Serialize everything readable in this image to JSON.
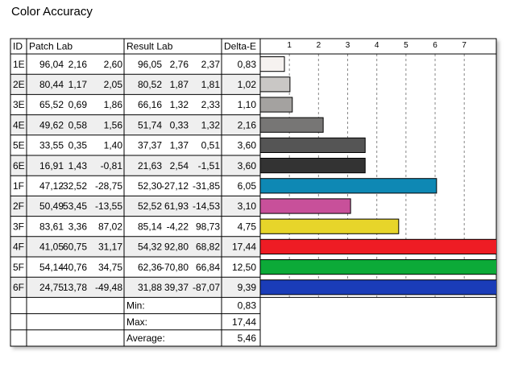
{
  "title": "Color Accuracy",
  "table": {
    "headers": [
      "ID",
      "Patch Lab",
      "Result Lab",
      "Delta-E"
    ],
    "rows": [
      {
        "id": "1E",
        "patch": [
          "96,04",
          "2,16",
          "2,60"
        ],
        "result": [
          "96,05",
          "2,76",
          "2,37"
        ]
      },
      {
        "id": "2E",
        "patch": [
          "80,44",
          "1,17",
          "2,05"
        ],
        "result": [
          "80,52",
          "1,87",
          "1,81"
        ]
      },
      {
        "id": "3E",
        "patch": [
          "65,52",
          "0,69",
          "1,86"
        ],
        "result": [
          "66,16",
          "1,32",
          "2,33"
        ]
      },
      {
        "id": "4E",
        "patch": [
          "49,62",
          "0,58",
          "1,56"
        ],
        "result": [
          "51,74",
          "0,33",
          "1,32"
        ]
      },
      {
        "id": "5E",
        "patch": [
          "33,55",
          "0,35",
          "1,40"
        ],
        "result": [
          "37,37",
          "1,37",
          "0,51"
        ]
      },
      {
        "id": "6E",
        "patch": [
          "16,91",
          "1,43",
          "-0,81"
        ],
        "result": [
          "21,63",
          "2,54",
          "-1,51"
        ]
      },
      {
        "id": "1F",
        "patch": [
          "47,12",
          "-32,52",
          "-28,75"
        ],
        "result": [
          "52,30",
          "-27,12",
          "-31,85"
        ]
      },
      {
        "id": "2F",
        "patch": [
          "50,49",
          "53,45",
          "-13,55"
        ],
        "result": [
          "52,52",
          "61,93",
          "-14,53"
        ]
      },
      {
        "id": "3F",
        "patch": [
          "83,61",
          "3,36",
          "87,02"
        ],
        "result": [
          "85,14",
          "-4,22",
          "98,73"
        ]
      },
      {
        "id": "4F",
        "patch": [
          "41,05",
          "60,75",
          "31,17"
        ],
        "result": [
          "54,32",
          "92,80",
          "68,82"
        ]
      },
      {
        "id": "5F",
        "patch": [
          "54,14",
          "-40,76",
          "34,75"
        ],
        "result": [
          "62,36",
          "-70,80",
          "66,84"
        ]
      },
      {
        "id": "6F",
        "patch": [
          "24,75",
          "13,78",
          "-49,48"
        ],
        "result": [
          "31,88",
          "39,37",
          "-87,07"
        ]
      }
    ],
    "summary": [
      {
        "label": "Min:",
        "value": "0,83"
      },
      {
        "label": "Max:",
        "value": "17,44"
      },
      {
        "label": "Average:",
        "value": "5,46"
      }
    ]
  },
  "chart_data": {
    "type": "bar",
    "orientation": "horizontal",
    "values": [
      0.83,
      1.02,
      1.1,
      2.16,
      3.6,
      3.6,
      6.05,
      3.1,
      4.75,
      17.44,
      12.5,
      9.39
    ],
    "value_labels": [
      "0,83",
      "1,02",
      "1,10",
      "2,16",
      "3,60",
      "3,60",
      "6,05",
      "3,10",
      "4,75",
      "17,44",
      "12,50",
      "9,39"
    ],
    "colors": [
      "#f6f2f0",
      "#c9c7c5",
      "#a4a2a0",
      "#777675",
      "#555555",
      "#333333",
      "#0e88b4",
      "#c8509a",
      "#e7d52a",
      "#ee1c24",
      "#0caa38",
      "#1a3cb8"
    ],
    "xlim": [
      0,
      8.1
    ],
    "xticks": [
      1,
      2,
      3,
      4,
      5,
      6,
      7
    ],
    "grid": true
  }
}
